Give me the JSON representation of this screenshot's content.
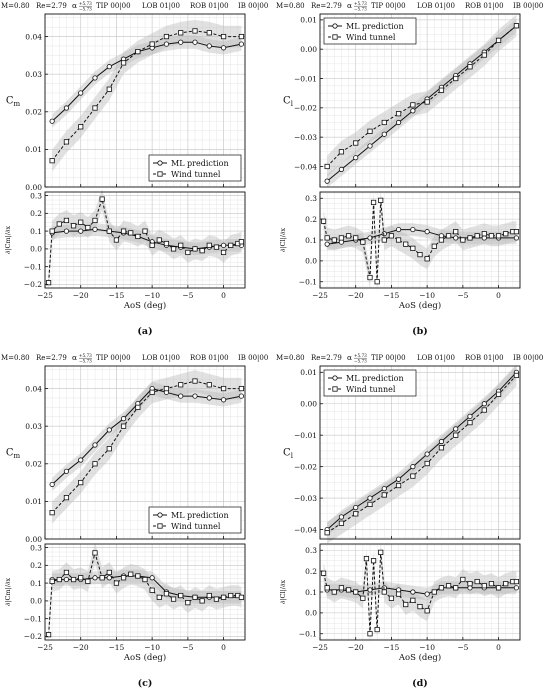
{
  "chart_data": [
    {
      "label": "(a)",
      "type": "line",
      "header": {
        "M": "M=0.80",
        "Re": "Re=2.79",
        "alpha": "α",
        "alpha_top": "+5.73",
        "alpha_bot": "−5.73",
        "TIP": "TIP 00|00",
        "LOB": "LOB 01|00",
        "ROB": "ROB 01|00",
        "IB": "IB 00|00"
      },
      "xlabel": "AoS (deg)",
      "xlim": [
        -25,
        3
      ],
      "xticks": [
        -25,
        -20,
        -15,
        -10,
        -5,
        0
      ],
      "top": {
        "ylabel": "C_m",
        "ylim": [
          0.0,
          0.046
        ],
        "yticks": [
          0.0,
          0.01,
          0.02,
          0.03,
          0.04
        ],
        "legend_pos": "bottom-right",
        "series": [
          {
            "name": "ML prediction",
            "marker": "circle",
            "dash": "solid",
            "x": [
              -24,
              -22,
              -20,
              -18,
              -16,
              -14,
              -12,
              -10,
              -8,
              -6,
              -4,
              -2,
              0,
              2.5
            ],
            "y": [
              0.0175,
              0.021,
              0.025,
              0.029,
              0.032,
              0.034,
              0.036,
              0.037,
              0.038,
              0.0385,
              0.0385,
              0.0375,
              0.037,
              0.038
            ]
          },
          {
            "name": "Wind tunnel",
            "marker": "square",
            "dash": "dashed",
            "x": [
              -24,
              -22,
              -20,
              -18,
              -16,
              -14,
              -12,
              -10,
              -8,
              -6,
              -4,
              -2,
              0,
              2.5
            ],
            "y": [
              0.007,
              0.012,
              0.016,
              0.021,
              0.026,
              0.033,
              0.036,
              0.038,
              0.04,
              0.041,
              0.0415,
              0.041,
              0.04,
              0.04
            ]
          }
        ]
      },
      "bottom": {
        "ylabel": "∂|C_m|/∂x",
        "ylim": [
          -0.22,
          0.32
        ],
        "yticks": [
          -0.2,
          -0.1,
          0.0,
          0.1,
          0.2,
          0.3
        ],
        "series": [
          {
            "name": "ML prediction",
            "marker": "circle",
            "dash": "solid",
            "x": [
              -24,
              -22,
              -20,
              -18,
              -16,
              -14,
              -12,
              -10,
              -8,
              -6,
              -4,
              -2,
              0,
              2.5
            ],
            "y": [
              0.09,
              0.1,
              0.1,
              0.11,
              0.1,
              0.09,
              0.07,
              0.04,
              0.02,
              0.01,
              0.0,
              0.01,
              0.02,
              0.02
            ]
          },
          {
            "name": "Wind tunnel",
            "marker": "square",
            "dash": "dashed",
            "x": [
              -24.5,
              -24,
              -23,
              -22,
              -21,
              -20,
              -19,
              -18,
              -17,
              -16,
              -15,
              -14,
              -13,
              -12,
              -11,
              -10,
              -9,
              -8,
              -7,
              -6,
              -5,
              -4,
              -3,
              -2,
              -1,
              0,
              1,
              2,
              2.5
            ],
            "y": [
              -0.19,
              0.1,
              0.14,
              0.16,
              0.13,
              0.15,
              0.12,
              0.16,
              0.28,
              0.1,
              0.05,
              0.1,
              0.09,
              0.07,
              0.1,
              0.02,
              0.05,
              0.03,
              0.0,
              0.02,
              -0.02,
              0.0,
              -0.01,
              0.02,
              0.01,
              -0.02,
              0.02,
              0.03,
              0.04
            ]
          }
        ]
      }
    },
    {
      "label": "(b)",
      "type": "line",
      "header": {
        "M": "M=0.80",
        "Re": "Re=2.79",
        "alpha": "α",
        "alpha_top": "+5.73",
        "alpha_bot": "−5.73",
        "TIP": "TIP 00|00",
        "LOB": "LOB 01|00",
        "ROB": "ROB 01|00",
        "IB": "IB 00|00"
      },
      "xlabel": "AoS (deg)",
      "xlim": [
        -25,
        3
      ],
      "xticks": [
        -25,
        -20,
        -15,
        -10,
        -5,
        0
      ],
      "top": {
        "ylabel": "C_l",
        "ylim": [
          -0.047,
          0.012
        ],
        "yticks": [
          -0.04,
          -0.03,
          -0.02,
          -0.01,
          0.0,
          0.01
        ],
        "legend_pos": "top-left",
        "series": [
          {
            "name": "ML prediction",
            "marker": "circle",
            "dash": "solid",
            "x": [
              -24,
              -22,
              -20,
              -18,
              -16,
              -14,
              -12,
              -10,
              -8,
              -6,
              -4,
              -2,
              0,
              2.5
            ],
            "y": [
              -0.045,
              -0.041,
              -0.037,
              -0.033,
              -0.029,
              -0.025,
              -0.021,
              -0.017,
              -0.013,
              -0.009,
              -0.005,
              -0.001,
              0.003,
              0.008
            ]
          },
          {
            "name": "Wind tunnel",
            "marker": "square",
            "dash": "dashed",
            "x": [
              -24,
              -22,
              -20,
              -18,
              -16,
              -14,
              -12,
              -10,
              -8,
              -6,
              -4,
              -2,
              0,
              2.5
            ],
            "y": [
              -0.04,
              -0.035,
              -0.032,
              -0.028,
              -0.025,
              -0.022,
              -0.019,
              -0.018,
              -0.014,
              -0.01,
              -0.006,
              -0.002,
              0.003,
              0.008
            ]
          }
        ]
      },
      "bottom": {
        "ylabel": "∂|C_l|/∂x",
        "ylim": [
          -0.13,
          0.33
        ],
        "yticks": [
          -0.1,
          0.0,
          0.1,
          0.2,
          0.3
        ],
        "series": [
          {
            "name": "ML prediction",
            "marker": "circle",
            "dash": "solid",
            "x": [
              -24,
              -22,
              -20,
              -18,
              -16,
              -14,
              -12,
              -10,
              -8,
              -6,
              -4,
              -2,
              0,
              2.5
            ],
            "y": [
              0.08,
              0.09,
              0.1,
              0.11,
              0.13,
              0.15,
              0.15,
              0.14,
              0.12,
              0.11,
              0.11,
              0.11,
              0.11,
              0.11
            ]
          },
          {
            "name": "Wind tunnel",
            "marker": "square",
            "dash": "dashed",
            "x": [
              -24.5,
              -24,
              -23,
              -22,
              -21,
              -20,
              -19,
              -18,
              -17.5,
              -17,
              -16.5,
              -16,
              -15,
              -14,
              -13,
              -12,
              -11,
              -10,
              -9,
              -8,
              -7,
              -6,
              -5,
              -4,
              -3,
              -2,
              -1,
              0,
              1,
              2,
              2.5
            ],
            "y": [
              0.19,
              0.11,
              0.1,
              0.11,
              0.12,
              0.11,
              0.09,
              -0.08,
              0.28,
              -0.1,
              0.29,
              0.1,
              0.12,
              0.1,
              0.08,
              0.06,
              0.03,
              0.01,
              0.07,
              0.1,
              0.12,
              0.14,
              0.1,
              0.11,
              0.12,
              0.13,
              0.12,
              0.12,
              0.13,
              0.14,
              0.14
            ]
          }
        ]
      }
    },
    {
      "label": "(c)",
      "type": "line",
      "header": {
        "M": "M=0.80",
        "Re": "Re=2.79",
        "alpha": "α",
        "alpha_top": "+5.73",
        "alpha_bot": "−5.73",
        "TIP": "TIP 00|00",
        "LOB": "LOB 01|00",
        "ROB": "ROB 01|00",
        "IB": "IB 00|00"
      },
      "xlabel": "AoS (deg)",
      "xlim": [
        -25,
        3
      ],
      "xticks": [
        -25,
        -20,
        -15,
        -10,
        -5,
        0
      ],
      "top": {
        "ylabel": "C_m",
        "ylim": [
          0.0,
          0.046
        ],
        "yticks": [
          0.0,
          0.01,
          0.02,
          0.03,
          0.04
        ],
        "legend_pos": "bottom-right",
        "series": [
          {
            "name": "ML prediction",
            "marker": "circle",
            "dash": "solid",
            "x": [
              -24,
              -22,
              -20,
              -18,
              -16,
              -14,
              -12,
              -10,
              -8,
              -6,
              -4,
              -2,
              0,
              2.5
            ],
            "y": [
              0.0145,
              0.018,
              0.021,
              0.025,
              0.029,
              0.032,
              0.036,
              0.04,
              0.039,
              0.038,
              0.038,
              0.0375,
              0.037,
              0.038
            ]
          },
          {
            "name": "Wind tunnel",
            "marker": "square",
            "dash": "dashed",
            "x": [
              -24,
              -22,
              -20,
              -18,
              -16,
              -14,
              -12,
              -10,
              -8,
              -6,
              -4,
              -2,
              0,
              2.5
            ],
            "y": [
              0.007,
              0.011,
              0.015,
              0.02,
              0.024,
              0.03,
              0.035,
              0.039,
              0.04,
              0.041,
              0.042,
              0.041,
              0.04,
              0.04
            ]
          }
        ]
      },
      "bottom": {
        "ylabel": "∂|C_m|/∂x",
        "ylim": [
          -0.22,
          0.32
        ],
        "yticks": [
          -0.2,
          -0.1,
          0.0,
          0.1,
          0.2,
          0.3
        ],
        "series": [
          {
            "name": "ML prediction",
            "marker": "circle",
            "dash": "solid",
            "x": [
              -24,
              -22,
              -20,
              -18,
              -16,
              -14,
              -12,
              -10,
              -8,
              -6,
              -4,
              -2,
              0,
              2.5
            ],
            "y": [
              0.12,
              0.12,
              0.12,
              0.13,
              0.13,
              0.14,
              0.14,
              0.13,
              0.05,
              0.03,
              0.02,
              0.02,
              0.02,
              0.02
            ]
          },
          {
            "name": "Wind tunnel",
            "marker": "square",
            "dash": "dashed",
            "x": [
              -24.5,
              -24,
              -23,
              -22,
              -21,
              -20,
              -19,
              -18,
              -17,
              -16,
              -15,
              -14,
              -13,
              -12,
              -11,
              -10,
              -9,
              -8,
              -7,
              -6,
              -5,
              -4,
              -3,
              -2,
              -1,
              0,
              1,
              2,
              2.5
            ],
            "y": [
              -0.19,
              0.11,
              0.12,
              0.16,
              0.12,
              0.13,
              0.11,
              0.27,
              0.13,
              0.16,
              0.1,
              0.13,
              0.15,
              0.14,
              0.12,
              0.06,
              0.02,
              0.04,
              0.01,
              0.03,
              -0.01,
              0.02,
              0.0,
              0.03,
              0.01,
              0.02,
              0.03,
              0.03,
              0.02
            ]
          }
        ]
      }
    },
    {
      "label": "(d)",
      "type": "line",
      "header": {
        "M": "M=0.80",
        "Re": "Re=2.79",
        "alpha": "α",
        "alpha_top": "+5.73",
        "alpha_bot": "−5.73",
        "TIP": "TIP 00|00",
        "LOB": "LOB 01|00",
        "ROB": "ROB 01|00",
        "IB": "IB 00|00"
      },
      "xlabel": "AoS (deg)",
      "xlim": [
        -25,
        3
      ],
      "xticks": [
        -25,
        -20,
        -15,
        -10,
        -5,
        0
      ],
      "top": {
        "ylabel": "C_l",
        "ylim": [
          -0.043,
          0.012
        ],
        "yticks": [
          -0.04,
          -0.03,
          -0.02,
          -0.01,
          0.0,
          0.01
        ],
        "legend_pos": "top-left",
        "series": [
          {
            "name": "ML prediction",
            "marker": "circle",
            "dash": "solid",
            "x": [
              -24,
              -22,
              -20,
              -18,
              -16,
              -14,
              -12,
              -10,
              -8,
              -6,
              -4,
              -2,
              0,
              2.5
            ],
            "y": [
              -0.04,
              -0.036,
              -0.033,
              -0.03,
              -0.027,
              -0.024,
              -0.02,
              -0.016,
              -0.012,
              -0.008,
              -0.004,
              0.0,
              0.004,
              0.01
            ]
          },
          {
            "name": "Wind tunnel",
            "marker": "square",
            "dash": "dashed",
            "x": [
              -24,
              -22,
              -20,
              -18,
              -16,
              -14,
              -12,
              -10,
              -8,
              -6,
              -4,
              -2,
              0,
              2.5
            ],
            "y": [
              -0.041,
              -0.038,
              -0.035,
              -0.032,
              -0.029,
              -0.026,
              -0.023,
              -0.019,
              -0.014,
              -0.01,
              -0.006,
              -0.002,
              0.003,
              0.009
            ]
          }
        ]
      },
      "bottom": {
        "ylabel": "∂|C_l|/∂x",
        "ylim": [
          -0.13,
          0.33
        ],
        "yticks": [
          -0.1,
          0.0,
          0.1,
          0.2,
          0.3
        ],
        "series": [
          {
            "name": "ML prediction",
            "marker": "circle",
            "dash": "solid",
            "x": [
              -24,
              -22,
              -20,
              -18,
              -16,
              -14,
              -12,
              -10,
              -8,
              -6,
              -4,
              -2,
              0,
              2.5
            ],
            "y": [
              0.11,
              0.11,
              0.1,
              0.11,
              0.12,
              0.11,
              0.1,
              0.09,
              0.12,
              0.12,
              0.12,
              0.12,
              0.12,
              0.12
            ]
          },
          {
            "name": "Wind tunnel",
            "marker": "square",
            "dash": "dashed",
            "x": [
              -24.5,
              -24,
              -23,
              -22,
              -21,
              -20,
              -19,
              -18.5,
              -18,
              -17.5,
              -17,
              -16.5,
              -16,
              -15,
              -14,
              -13,
              -12,
              -11,
              -10,
              -9,
              -8,
              -7,
              -6,
              -5,
              -4,
              -3,
              -2,
              -1,
              0,
              1,
              2,
              2.5
            ],
            "y": [
              0.19,
              0.12,
              0.1,
              0.12,
              0.11,
              0.1,
              0.07,
              0.26,
              -0.1,
              0.25,
              -0.08,
              0.29,
              0.1,
              0.07,
              0.09,
              0.04,
              0.06,
              0.03,
              0.01,
              0.1,
              0.12,
              0.13,
              0.12,
              0.16,
              0.14,
              0.15,
              0.13,
              0.14,
              0.12,
              0.14,
              0.15,
              0.15
            ]
          }
        ]
      }
    }
  ]
}
